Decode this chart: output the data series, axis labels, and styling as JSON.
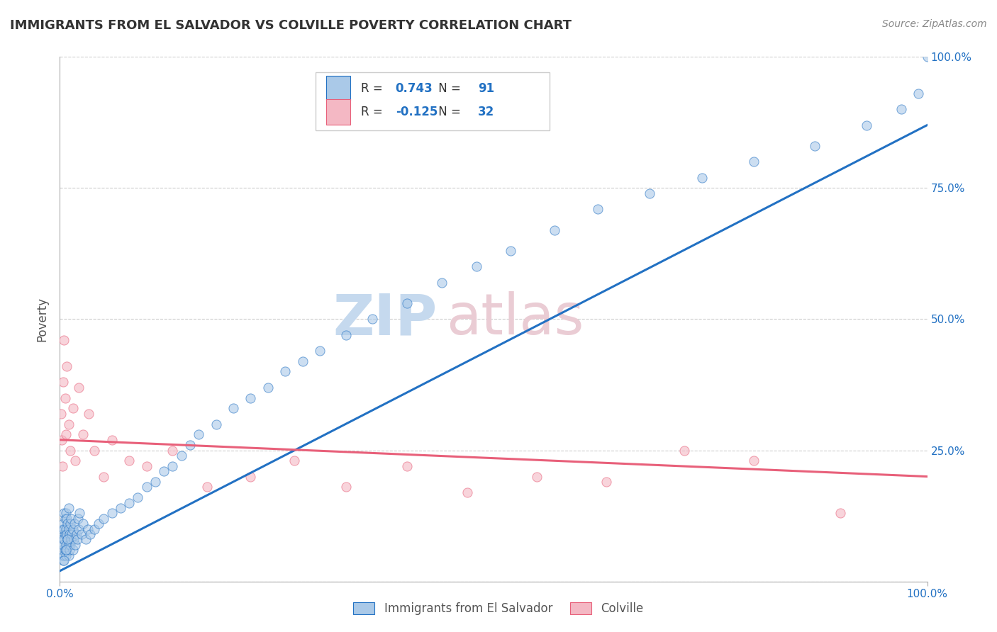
{
  "title": "IMMIGRANTS FROM EL SALVADOR VS COLVILLE POVERTY CORRELATION CHART",
  "source": "Source: ZipAtlas.com",
  "ylabel": "Poverty",
  "xlim": [
    0,
    1.0
  ],
  "ylim": [
    0,
    1.0
  ],
  "xtick_positions": [
    0.0,
    1.0
  ],
  "xtick_labels": [
    "0.0%",
    "100.0%"
  ],
  "yticks": [
    0.0,
    0.25,
    0.5,
    0.75,
    1.0
  ],
  "ytick_labels_right": [
    "",
    "25.0%",
    "50.0%",
    "75.0%",
    "100.0%"
  ],
  "blue_color": "#aac9e8",
  "pink_color": "#f4b8c4",
  "blue_line_color": "#2271c3",
  "pink_line_color": "#e8607a",
  "R_blue": "0.743",
  "N_blue": "91",
  "R_pink": "-0.125",
  "N_pink": "32",
  "legend_label_blue": "Immigrants from El Salvador",
  "legend_label_pink": "Colville",
  "background_color": "#ffffff",
  "grid_color": "#cccccc",
  "title_color": "#333333",
  "blue_trend_x": [
    0.0,
    1.0
  ],
  "blue_trend_y": [
    0.02,
    0.87
  ],
  "pink_trend_x": [
    0.0,
    1.0
  ],
  "pink_trend_y": [
    0.27,
    0.2
  ],
  "blue_scatter_x": [
    0.001,
    0.002,
    0.002,
    0.003,
    0.003,
    0.003,
    0.004,
    0.004,
    0.004,
    0.005,
    0.005,
    0.005,
    0.005,
    0.006,
    0.006,
    0.006,
    0.007,
    0.007,
    0.007,
    0.007,
    0.008,
    0.008,
    0.008,
    0.009,
    0.009,
    0.01,
    0.01,
    0.01,
    0.01,
    0.011,
    0.011,
    0.012,
    0.012,
    0.013,
    0.013,
    0.014,
    0.015,
    0.015,
    0.016,
    0.017,
    0.018,
    0.019,
    0.02,
    0.021,
    0.022,
    0.023,
    0.025,
    0.027,
    0.03,
    0.032,
    0.035,
    0.04,
    0.045,
    0.05,
    0.06,
    0.07,
    0.08,
    0.09,
    0.1,
    0.11,
    0.12,
    0.13,
    0.14,
    0.15,
    0.16,
    0.18,
    0.2,
    0.22,
    0.24,
    0.26,
    0.28,
    0.3,
    0.33,
    0.36,
    0.4,
    0.44,
    0.48,
    0.52,
    0.57,
    0.62,
    0.68,
    0.74,
    0.8,
    0.87,
    0.93,
    0.97,
    0.99,
    1.0,
    0.005,
    0.007,
    0.009
  ],
  "blue_scatter_y": [
    0.07,
    0.05,
    0.09,
    0.06,
    0.08,
    0.1,
    0.04,
    0.07,
    0.11,
    0.05,
    0.08,
    0.1,
    0.13,
    0.06,
    0.09,
    0.12,
    0.05,
    0.07,
    0.1,
    0.13,
    0.06,
    0.09,
    0.12,
    0.08,
    0.11,
    0.05,
    0.07,
    0.1,
    0.14,
    0.06,
    0.09,
    0.07,
    0.11,
    0.08,
    0.12,
    0.09,
    0.06,
    0.1,
    0.08,
    0.11,
    0.07,
    0.09,
    0.08,
    0.12,
    0.1,
    0.13,
    0.09,
    0.11,
    0.08,
    0.1,
    0.09,
    0.1,
    0.11,
    0.12,
    0.13,
    0.14,
    0.15,
    0.16,
    0.18,
    0.19,
    0.21,
    0.22,
    0.24,
    0.26,
    0.28,
    0.3,
    0.33,
    0.35,
    0.37,
    0.4,
    0.42,
    0.44,
    0.47,
    0.5,
    0.53,
    0.57,
    0.6,
    0.63,
    0.67,
    0.71,
    0.74,
    0.77,
    0.8,
    0.83,
    0.87,
    0.9,
    0.93,
    1.0,
    0.04,
    0.06,
    0.08
  ],
  "pink_scatter_x": [
    0.001,
    0.002,
    0.003,
    0.004,
    0.005,
    0.006,
    0.007,
    0.008,
    0.01,
    0.012,
    0.015,
    0.018,
    0.022,
    0.027,
    0.033,
    0.04,
    0.05,
    0.06,
    0.08,
    0.1,
    0.13,
    0.17,
    0.22,
    0.27,
    0.33,
    0.4,
    0.47,
    0.55,
    0.63,
    0.72,
    0.8,
    0.9
  ],
  "pink_scatter_y": [
    0.32,
    0.27,
    0.22,
    0.38,
    0.46,
    0.35,
    0.28,
    0.41,
    0.3,
    0.25,
    0.33,
    0.23,
    0.37,
    0.28,
    0.32,
    0.25,
    0.2,
    0.27,
    0.23,
    0.22,
    0.25,
    0.18,
    0.2,
    0.23,
    0.18,
    0.22,
    0.17,
    0.2,
    0.19,
    0.25,
    0.23,
    0.13
  ]
}
